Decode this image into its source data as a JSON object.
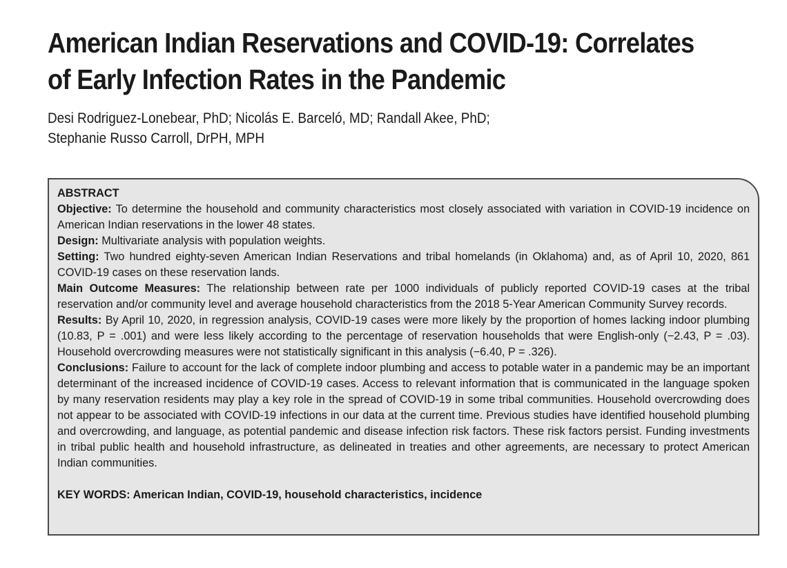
{
  "article": {
    "title_line1": "American Indian Reservations and COVID-19: Correlates",
    "title_line2": "of Early Infection Rates in the Pandemic",
    "authors_line1": "Desi Rodriguez-Lonebear, PhD; Nicolás E. Barceló, MD; Randall Akee, PhD;",
    "authors_line2": "Stephanie Russo Carroll, DrPH, MPH"
  },
  "abstract": {
    "heading": "ABSTRACT",
    "objective_label": "Objective:",
    "objective_text": " To determine the household and community characteristics most closely associated with variation in COVID-19 incidence on American Indian reservations in the lower 48 states.",
    "design_label": "Design:",
    "design_text": " Multivariate analysis with population weights.",
    "setting_label": "Setting:",
    "setting_text": " Two hundred eighty-seven American Indian Reservations and tribal homelands (in Oklahoma) and, as of April 10, 2020, 861 COVID-19 cases on these reservation lands.",
    "outcome_label": "Main Outcome Measures:",
    "outcome_text": " The relationship between rate per 1000 individuals of publicly reported COVID-19 cases at the tribal reservation and/or community level and average household characteristics from the 2018 5-Year American Community Survey records.",
    "results_label": "Results:",
    "results_text": " By April 10, 2020, in regression analysis, COVID-19 cases were more likely by the proportion of homes lacking indoor plumbing (10.83, P = .001) and were less likely according to the percentage of reservation households that were English-only (−2.43, P = .03). Household overcrowding measures were not statistically significant in this analysis (−6.40, P = .326).",
    "conclusions_label": "Conclusions:",
    "conclusions_text": " Failure to account for the lack of complete indoor plumbing and access to potable water in a pandemic may be an important determinant of the increased incidence of COVID-19 cases. Access to relevant information that is communicated in the language spoken by many reservation residents may play a key role in the spread of COVID-19 in some tribal communities. Household overcrowding does not appear to be associated with COVID-19 infections in our data at the current time. Previous studies have identified household plumbing and overcrowding, and language, as potential pandemic and disease infection risk factors. These risk factors persist. Funding investments in tribal public health and household infrastructure, as delineated in treaties and other agreements, are necessary to protect American Indian communities.",
    "keywords": "KEY WORDS: American Indian, COVID-19, household characteristics, incidence"
  }
}
